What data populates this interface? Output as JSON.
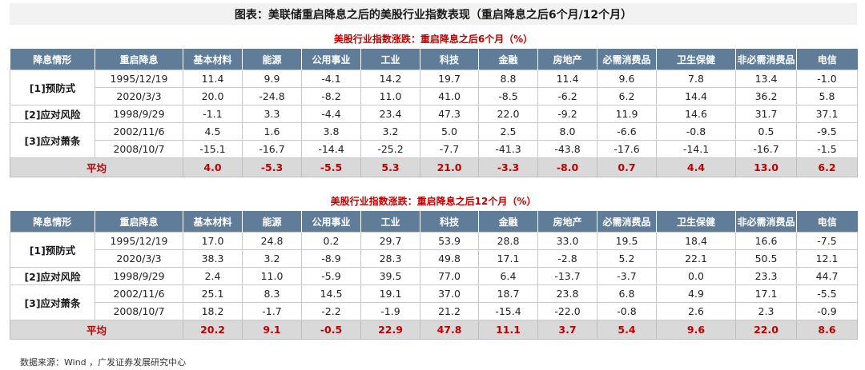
{
  "title": "图表：美联储重启降息之后的美股行业指数表现（重启降息之后6个月/12个月）",
  "headers": [
    "降息情形",
    "重启降息",
    "基本材料",
    "能源",
    "公用事业",
    "工业",
    "科技",
    "金融",
    "房地产",
    "必需消费品",
    "卫生保健",
    "非必需消费品",
    "电信"
  ],
  "tables": [
    {
      "subtitle": "美股行业指数涨跌：重启降息之后6个月（%）",
      "groups": [
        {
          "label": "[1]预防式",
          "rows": [
            {
              "date": "1995/12/19",
              "values": [
                "11.4",
                "9.9",
                "-4.1",
                "14.2",
                "19.7",
                "8.8",
                "11.4",
                "9.6",
                "7.8",
                "13.4",
                "-1.0"
              ]
            },
            {
              "date": "2020/3/3",
              "values": [
                "20.0",
                "-24.8",
                "-8.2",
                "11.0",
                "41.0",
                "-8.5",
                "-6.2",
                "6.2",
                "14.4",
                "36.2",
                "5.8"
              ]
            }
          ]
        },
        {
          "label": "[2]应对风险",
          "rows": [
            {
              "date": "1998/9/29",
              "values": [
                "-1.1",
                "3.3",
                "-4.4",
                "23.4",
                "47.3",
                "22.0",
                "-9.2",
                "11.9",
                "14.6",
                "31.7",
                "37.1"
              ]
            }
          ]
        },
        {
          "label": "[3]应对萧条",
          "rows": [
            {
              "date": "2002/11/6",
              "values": [
                "4.5",
                "1.6",
                "3.8",
                "3.2",
                "5.0",
                "2.5",
                "8.0",
                "-6.6",
                "-0.8",
                "0.5",
                "-9.5"
              ]
            },
            {
              "date": "2008/10/7",
              "values": [
                "-15.1",
                "-16.7",
                "-14.4",
                "-25.2",
                "-7.7",
                "-41.3",
                "-43.8",
                "-17.6",
                "-14.1",
                "-16.7",
                "-1.5"
              ]
            }
          ]
        }
      ],
      "average": {
        "label": "平均",
        "values": [
          "4.0",
          "-5.3",
          "-5.5",
          "5.3",
          "21.0",
          "-3.3",
          "-8.0",
          "0.7",
          "4.4",
          "13.0",
          "6.2"
        ]
      }
    },
    {
      "subtitle": "美股行业指数涨跌：重启降息之后12个月（%）",
      "groups": [
        {
          "label": "[1]预防式",
          "rows": [
            {
              "date": "1995/12/19",
              "values": [
                "17.0",
                "24.8",
                "0.2",
                "29.7",
                "53.9",
                "28.8",
                "33.0",
                "19.5",
                "18.4",
                "16.6",
                "-7.5"
              ]
            },
            {
              "date": "2020/3/3",
              "values": [
                "38.3",
                "3.2",
                "-8.9",
                "28.3",
                "49.8",
                "17.1",
                "-2.8",
                "5.2",
                "22.1",
                "50.5",
                "12.1"
              ]
            }
          ]
        },
        {
          "label": "[2]应对风险",
          "rows": [
            {
              "date": "1998/9/29",
              "values": [
                "2.4",
                "11.0",
                "-5.9",
                "39.5",
                "77.0",
                "6.4",
                "-13.7",
                "-3.7",
                "0.0",
                "23.3",
                "44.7"
              ]
            }
          ]
        },
        {
          "label": "[3]应对萧条",
          "rows": [
            {
              "date": "2002/11/6",
              "values": [
                "25.1",
                "8.3",
                "14.5",
                "19.1",
                "37.0",
                "18.7",
                "23.8",
                "6.8",
                "4.9",
                "17.1",
                "-5.5"
              ]
            },
            {
              "date": "2008/10/7",
              "values": [
                "18.2",
                "-1.7",
                "-2.2",
                "-1.9",
                "21.2",
                "-15.4",
                "-22.0",
                "-0.8",
                "2.6",
                "2.3",
                "-0.9"
              ]
            }
          ]
        }
      ],
      "average": {
        "label": "平均",
        "values": [
          "20.2",
          "9.1",
          "-0.5",
          "22.9",
          "47.8",
          "11.1",
          "3.7",
          "5.4",
          "9.6",
          "22.0",
          "8.6"
        ]
      }
    }
  ],
  "source": "数据来源：Wind ，广发证券发展研究中心",
  "colors": {
    "header_bg": "#5f7d99",
    "accent_red": "#c00000",
    "avg_bg": "#d9d9d9",
    "title_bg": "#f2f2f2"
  }
}
